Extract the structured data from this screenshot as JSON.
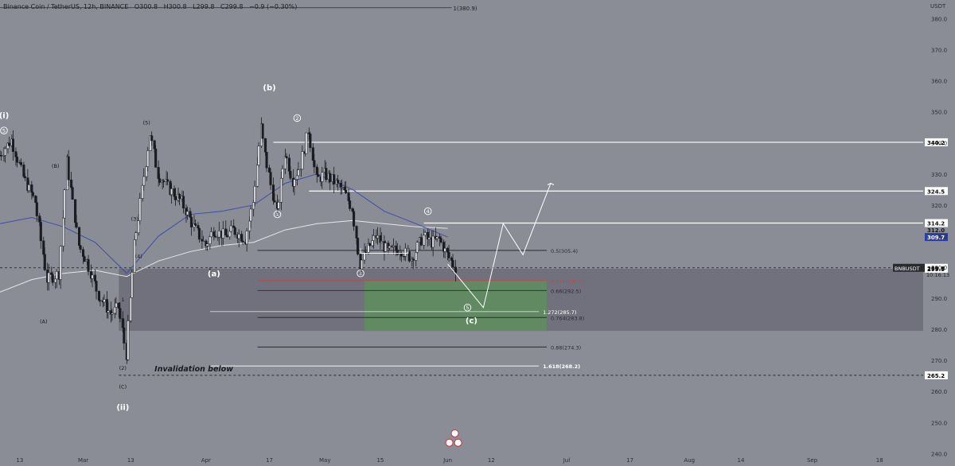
{
  "header": {
    "symbol": "Binance Coin / TetherUS, 12h, BINANCE",
    "open": "O300.8",
    "high": "H300.8",
    "low": "L299.8",
    "close": "C299.8",
    "change": "−0.9 (−0.30%)",
    "tl_label": "1(380.9)"
  },
  "currency": "USDT",
  "chart_data": {
    "type": "candlestick",
    "symbol": "BNBUSDT",
    "interval": "12h",
    "y_ticks": [
      380.0,
      370.0,
      360.0,
      350.0,
      340.0,
      330.0,
      320.0,
      310.0,
      300.0,
      290.0,
      280.0,
      270.0,
      260.0,
      250.0,
      240.0
    ],
    "y_range": [
      236,
      386
    ],
    "x_ticks": [
      {
        "label": "13",
        "date": "2022-02-13"
      },
      {
        "label": "Mar",
        "date": "2022-03-01"
      },
      {
        "label": "13",
        "date": "2022-03-13"
      },
      {
        "label": "Apr",
        "date": "2022-04-01"
      },
      {
        "label": "17",
        "date": "2022-04-17"
      },
      {
        "label": "May",
        "date": "2022-05-01"
      },
      {
        "label": "15",
        "date": "2022-05-15"
      },
      {
        "label": "Jun",
        "date": "2022-06-01"
      },
      {
        "label": "12",
        "date": "2022-06-12"
      },
      {
        "label": "Jul",
        "date": "2022-07-01"
      },
      {
        "label": "17",
        "date": "2022-07-17"
      },
      {
        "label": "Aug",
        "date": "2022-08-01"
      },
      {
        "label": "14",
        "date": "2022-08-14"
      },
      {
        "label": "Sep",
        "date": "2022-09-01"
      },
      {
        "label": "18",
        "date": "2022-09-18"
      }
    ],
    "x_range": [
      "2022-02-08",
      "2022-09-29"
    ],
    "price_path": [
      [
        "2022-02-08",
        336
      ],
      [
        "2022-02-11",
        341
      ],
      [
        "2022-02-14",
        329
      ],
      [
        "2022-02-17",
        321
      ],
      [
        "2022-02-20",
        296
      ],
      [
        "2022-02-23",
        298
      ],
      [
        "2022-02-25",
        334
      ],
      [
        "2022-02-28",
        307
      ],
      [
        "2022-03-02",
        302
      ],
      [
        "2022-03-05",
        291
      ],
      [
        "2022-03-08",
        285
      ],
      [
        "2022-03-10",
        287
      ],
      [
        "2022-03-12",
        272
      ],
      [
        "2022-03-14",
        307
      ],
      [
        "2022-03-16",
        325
      ],
      [
        "2022-03-18",
        343
      ],
      [
        "2022-03-20",
        330
      ],
      [
        "2022-03-23",
        325
      ],
      [
        "2022-03-26",
        321
      ],
      [
        "2022-03-29",
        313
      ],
      [
        "2022-04-01",
        307
      ],
      [
        "2022-04-03",
        312
      ],
      [
        "2022-04-06",
        310
      ],
      [
        "2022-04-08",
        312
      ],
      [
        "2022-04-11",
        309
      ],
      [
        "2022-04-13",
        321
      ],
      [
        "2022-04-15",
        345
      ],
      [
        "2022-04-16",
        336
      ],
      [
        "2022-04-19",
        317
      ],
      [
        "2022-04-21",
        337
      ],
      [
        "2022-04-23",
        328
      ],
      [
        "2022-04-25",
        333
      ],
      [
        "2022-04-27",
        344
      ],
      [
        "2022-04-29",
        328
      ],
      [
        "2022-05-01",
        330
      ],
      [
        "2022-05-04",
        327
      ],
      [
        "2022-05-06",
        324
      ],
      [
        "2022-05-08",
        319
      ],
      [
        "2022-05-10",
        301
      ],
      [
        "2022-05-12",
        306
      ],
      [
        "2022-05-14",
        310
      ],
      [
        "2022-05-17",
        305
      ],
      [
        "2022-05-20",
        306
      ],
      [
        "2022-05-23",
        303
      ],
      [
        "2022-05-26",
        310
      ],
      [
        "2022-05-28",
        308
      ],
      [
        "2022-05-30",
        309
      ],
      [
        "2022-06-01",
        304
      ],
      [
        "2022-06-03",
        299.8
      ]
    ],
    "last_price": 299.8,
    "last_label": "BNBUSDT",
    "countdown": "10:16:13",
    "price_labels": [
      {
        "value": 340.2,
        "text": "340.2",
        "style": "white"
      },
      {
        "value": 324.5,
        "text": "324.5",
        "style": "white"
      },
      {
        "value": 314.2,
        "text": "314.2",
        "style": "white"
      },
      {
        "value": 312.0,
        "text": "312.0",
        "style": "plain"
      },
      {
        "value": 309.7,
        "text": "309.7",
        "style": "blue"
      },
      {
        "value": 299.8,
        "text": "299.8",
        "style": "white"
      },
      {
        "value": 299.5,
        "text": "299.5",
        "style": "white"
      },
      {
        "value": 265.2,
        "text": "265.2",
        "style": "dark"
      }
    ],
    "levels": [
      {
        "price": 340.2,
        "from": "2022-04-18",
        "to": "2022-09-29",
        "color": "#ffffff",
        "width": 1.2
      },
      {
        "price": 324.5,
        "from": "2022-04-27",
        "to": "2022-09-29",
        "color": "#ffffff",
        "width": 1.2
      },
      {
        "price": 314.2,
        "from": "2022-05-26",
        "to": "2022-09-29",
        "color": "#ffffff",
        "width": 1.2
      }
    ],
    "dashed_levels": [
      {
        "price": 299.8,
        "from": "2022-02-08",
        "to": "2022-09-29"
      },
      {
        "price": 265.2,
        "from": "2022-03-10",
        "to": "2022-09-29"
      }
    ],
    "fib_lines": [
      {
        "price": 305.4,
        "from": "2022-04-14",
        "to": "2022-06-26",
        "color": "#2a2b30",
        "label": "0.5(305.4)"
      },
      {
        "price": 295.7,
        "from": "2022-04-14",
        "to": "2022-06-26",
        "color": "#c94545",
        "label": "0.618(295.7)"
      },
      {
        "price": 292.5,
        "from": "2022-04-14",
        "to": "2022-06-26",
        "color": "#2a2b30",
        "label": "0.66(292.5)"
      },
      {
        "price": 283.8,
        "from": "2022-04-14",
        "to": "2022-06-26",
        "color": "#2a2b30",
        "label": "0.764(283.8)"
      },
      {
        "price": 274.3,
        "from": "2022-04-14",
        "to": "2022-06-26",
        "color": "#2a2b30",
        "label": "0.88(274.3)"
      },
      {
        "price": 285.7,
        "from": "2022-04-02",
        "to": "2022-06-24",
        "color": "#d8d8d8",
        "label": "1.272(285.7)"
      },
      {
        "price": 268.2,
        "from": "2022-04-02",
        "to": "2022-06-24",
        "color": "#ffffff",
        "label": "1.618(268.2)"
      }
    ],
    "grey_zone": {
      "top": 299.5,
      "bottom": 279.5,
      "from": "2022-03-10",
      "to": "2022-09-29"
    },
    "green_zone": {
      "top": 295.7,
      "bottom": 279.5,
      "from": "2022-05-11",
      "to": "2022-06-26"
    },
    "projection": [
      [
        "2022-06-01",
        301
      ],
      [
        "2022-06-10",
        287
      ],
      [
        "2022-06-15",
        314
      ],
      [
        "2022-06-20",
        304
      ],
      [
        "2022-06-27",
        327
      ]
    ],
    "wave_labels": [
      {
        "text": "(i)",
        "date": "2022-02-09",
        "price": 348
      },
      {
        "text": "(ii)",
        "date": "2022-03-11",
        "price": 254
      },
      {
        "text": "(a)",
        "date": "2022-04-03",
        "price": 297
      },
      {
        "text": "(b)",
        "date": "2022-04-17",
        "price": 357
      },
      {
        "text": "(c)",
        "date": "2022-06-07",
        "price": 282
      },
      {
        "text": "(5)",
        "date": "2022-03-17",
        "price": 346
      },
      {
        "text": "(3)",
        "date": "2022-03-14",
        "price": 315
      },
      {
        "text": "(4)",
        "date": "2022-03-15",
        "price": 303
      },
      {
        "text": "(2)",
        "date": "2022-03-11",
        "price": 267
      },
      {
        "text": "(B)",
        "date": "2022-02-22",
        "price": 332
      },
      {
        "text": "(A)",
        "date": "2022-02-19",
        "price": 282
      },
      {
        "text": "(C)",
        "date": "2022-03-11",
        "price": 261
      },
      {
        "text": "1",
        "date": "2022-03-11",
        "price": 289
      }
    ],
    "wave_circles": [
      {
        "text": "5",
        "date": "2022-02-09",
        "price": 344
      },
      {
        "text": "2",
        "date": "2022-04-24",
        "price": 348
      },
      {
        "text": "1",
        "date": "2022-04-19",
        "price": 317
      },
      {
        "text": "4",
        "date": "2022-05-27",
        "price": 318
      },
      {
        "text": "3",
        "date": "2022-05-10",
        "price": 298
      },
      {
        "text": "5",
        "date": "2022-06-06",
        "price": 287
      }
    ],
    "annotation": {
      "text": "Invalidation below",
      "date": "2022-03-19",
      "price": 266.5
    },
    "wave_a_bracket": {
      "price": 300,
      "from": "2022-04-02",
      "to": "2022-04-02"
    },
    "flag_bracket": {
      "price": 304.5,
      "from": "2022-05-10",
      "to": "2022-05-22"
    },
    "header_line": {
      "price": 383.5,
      "from": "2022-02-08",
      "to": "2022-06-02"
    }
  },
  "colors": {
    "bg": "#8b8d96",
    "candle": "#1b1c21",
    "ma_blue": "#3a4fa8",
    "ma_white": "#e6e6ea",
    "grey_zone": "#6b6c78",
    "green_zone": "#5f8d60"
  }
}
